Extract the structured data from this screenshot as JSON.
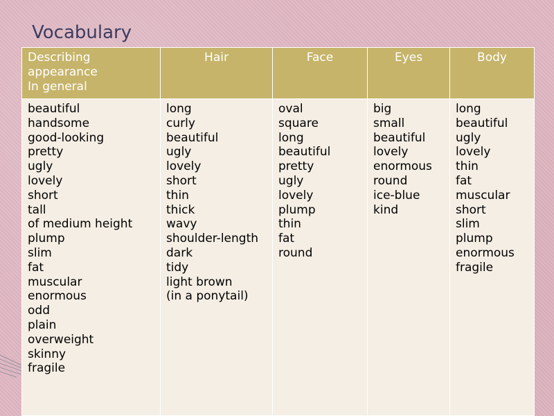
{
  "title": "Vocabulary",
  "headers": {
    "general": [
      "Describing",
      "appearance",
      "In general"
    ],
    "hair": "Hair",
    "face": "Face",
    "eyes": "Eyes",
    "body": "Body"
  },
  "columns": {
    "general": [
      "beautiful",
      "handsome",
      "good-looking",
      "pretty",
      "ugly",
      "lovely",
      "short",
      "tall",
      "of medium height",
      "plump",
      "slim",
      "fat",
      "muscular",
      "enormous",
      "odd",
      "plain",
      "overweight",
      "skinny",
      "fragile"
    ],
    "hair": [
      "long",
      "curly",
      "beautiful",
      "ugly",
      "lovely",
      "short",
      "thin",
      "thick",
      "wavy",
      "shoulder-length",
      "dark",
      "tidy",
      "light brown",
      "(in a ponytail)"
    ],
    "face": [
      "oval",
      "square",
      "long",
      "beautiful",
      "pretty",
      "ugly",
      "lovely",
      "plump",
      "thin",
      "fat",
      "round"
    ],
    "eyes": [
      "big",
      "small",
      "beautiful",
      "lovely",
      "enormous",
      "round",
      "ice-blue",
      "kind"
    ],
    "body": [
      "long",
      "beautiful",
      "ugly",
      "lovely",
      "thin",
      "fat",
      "muscular",
      "short",
      "slim",
      "plump",
      "enormous",
      "fragile"
    ]
  },
  "colors": {
    "background": "#e0b8c3",
    "header": "#c6b46a",
    "table_body": "#f4eee4",
    "title": "#3c3c60"
  }
}
